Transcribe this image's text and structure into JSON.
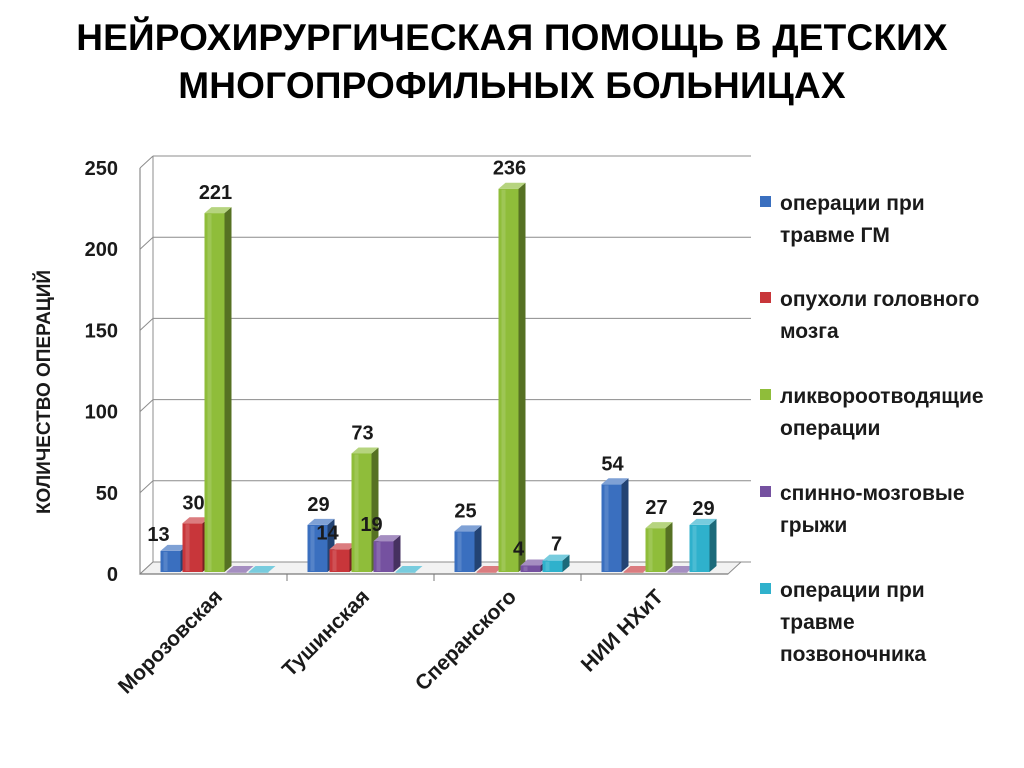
{
  "title": {
    "line1": "НЕЙРОХИРУРГИЧЕСКАЯ ПОМОЩЬ В ДЕТСКИХ",
    "line2": "МНОГОПРОФИЛЬНЫХ БОЛЬНИЦАХ"
  },
  "chart_data": {
    "type": "bar",
    "title": "НЕЙРОХИРУРГИЧЕСКАЯ ПОМОЩЬ В ДЕТСКИХ МНОГОПРОФИЛЬНЫХ БОЛЬНИЦАХ",
    "ylabel": "КОЛИЧЕСТВО ОПЕРАЦИЙ",
    "xlabel": "",
    "ylim": [
      0,
      250
    ],
    "yticks": [
      0,
      50,
      100,
      150,
      200,
      250
    ],
    "grid": true,
    "legend_position": "right",
    "categories": [
      "Морозовская",
      "Тушинская",
      "Сперанского",
      "НИИ НХиТ"
    ],
    "series": [
      {
        "name": "операции при травме ГМ",
        "legend_lines": [
          "операции при",
          "травме ГМ"
        ],
        "color": "#3a6fbf",
        "values": [
          13,
          29,
          25,
          54
        ],
        "labels": [
          "13",
          "29",
          "25",
          "54"
        ]
      },
      {
        "name": "опухоли головного мозга",
        "legend_lines": [
          "опухоли головного",
          "мозга"
        ],
        "color": "#c8363a",
        "values": [
          30,
          14,
          0,
          0
        ],
        "labels": [
          "30",
          "14",
          "",
          ""
        ]
      },
      {
        "name": "ликвороотводящие операции",
        "legend_lines": [
          "ликвороотводящие",
          "операции"
        ],
        "color": "#8fbd3a",
        "values": [
          221,
          73,
          236,
          27
        ],
        "labels": [
          "221",
          "73",
          "236",
          "27"
        ]
      },
      {
        "name": "спинно-мозговые грыжи",
        "legend_lines": [
          "спинно-мозговые",
          "грыжи"
        ],
        "color": "#7551a0",
        "values": [
          0,
          19,
          4,
          0
        ],
        "labels": [
          "",
          "19",
          "4",
          ""
        ]
      },
      {
        "name": "операции при травме позвоночника",
        "legend_lines": [
          "операции при",
          "травме",
          "позвоночника"
        ],
        "color": "#2fb1cc",
        "values": [
          0,
          0,
          7,
          29
        ],
        "labels": [
          "",
          "",
          "7",
          "29"
        ]
      }
    ]
  }
}
